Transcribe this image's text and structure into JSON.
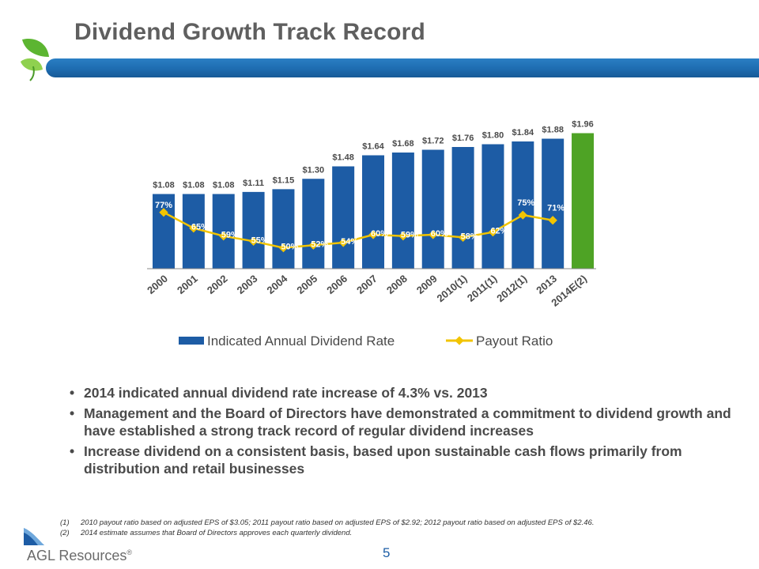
{
  "slide": {
    "title": "Dividend Growth Track Record",
    "page_number": "5",
    "logo_text": "AGL Resources",
    "logo_mark": "®"
  },
  "bullets": [
    "2014 indicated annual dividend rate increase of 4.3% vs. 2013",
    "Management and the Board of Directors have demonstrated a commitment to dividend growth and have established a strong track record of regular dividend increases",
    "Increase dividend on a consistent basis, based upon sustainable cash flows primarily from distribution and retail businesses"
  ],
  "footnotes": [
    {
      "mark": "(1)",
      "text": "2010 payout ratio based on adjusted EPS of $3.05; 2011 payout ratio based on adjusted EPS of $2.92; 2012 payout ratio based on adjusted EPS of $2.46."
    },
    {
      "mark": "(2)",
      "text": "2014 estimate assumes that Board of Directors approves each quarterly dividend."
    }
  ],
  "colors": {
    "bar": "#1d5ca5",
    "bar_estimate": "#4ea325",
    "line": "#f2c400",
    "header_bar": "#1e6cb0",
    "leaf": "#5cb531"
  },
  "chart_data": {
    "type": "bar",
    "categories": [
      "2000",
      "2001",
      "2002",
      "2003",
      "2004",
      "2005",
      "2006",
      "2007",
      "2008",
      "2009",
      "2010(1)",
      "2011(1)",
      "2012(1)",
      "2013",
      "2014E(2)"
    ],
    "series": [
      {
        "name": "Indicated Annual Dividend Rate",
        "type": "bar",
        "values": [
          1.08,
          1.08,
          1.08,
          1.11,
          1.15,
          1.3,
          1.48,
          1.64,
          1.68,
          1.72,
          1.76,
          1.8,
          1.84,
          1.88,
          1.96
        ],
        "labels": [
          "$1.08",
          "$1.08",
          "$1.08",
          "$1.11",
          "$1.15",
          "$1.30",
          "$1.48",
          "$1.64",
          "$1.68",
          "$1.72",
          "$1.76",
          "$1.80",
          "$1.84",
          "$1.88",
          "$1.96"
        ]
      },
      {
        "name": "Payout Ratio",
        "type": "line",
        "values": [
          77,
          65,
          59,
          55,
          50,
          52,
          54,
          60,
          59,
          60,
          58,
          62,
          75,
          71,
          null
        ],
        "labels": [
          "77%",
          "65%",
          "59%",
          "55%",
          "50%",
          "52%",
          "54%",
          "60%",
          "59%",
          "60%",
          "58%",
          "62%",
          "75%",
          "71%",
          ""
        ]
      }
    ],
    "legend": "bottom",
    "grid": false,
    "title": "",
    "xlabel": "",
    "ylabel": ""
  }
}
